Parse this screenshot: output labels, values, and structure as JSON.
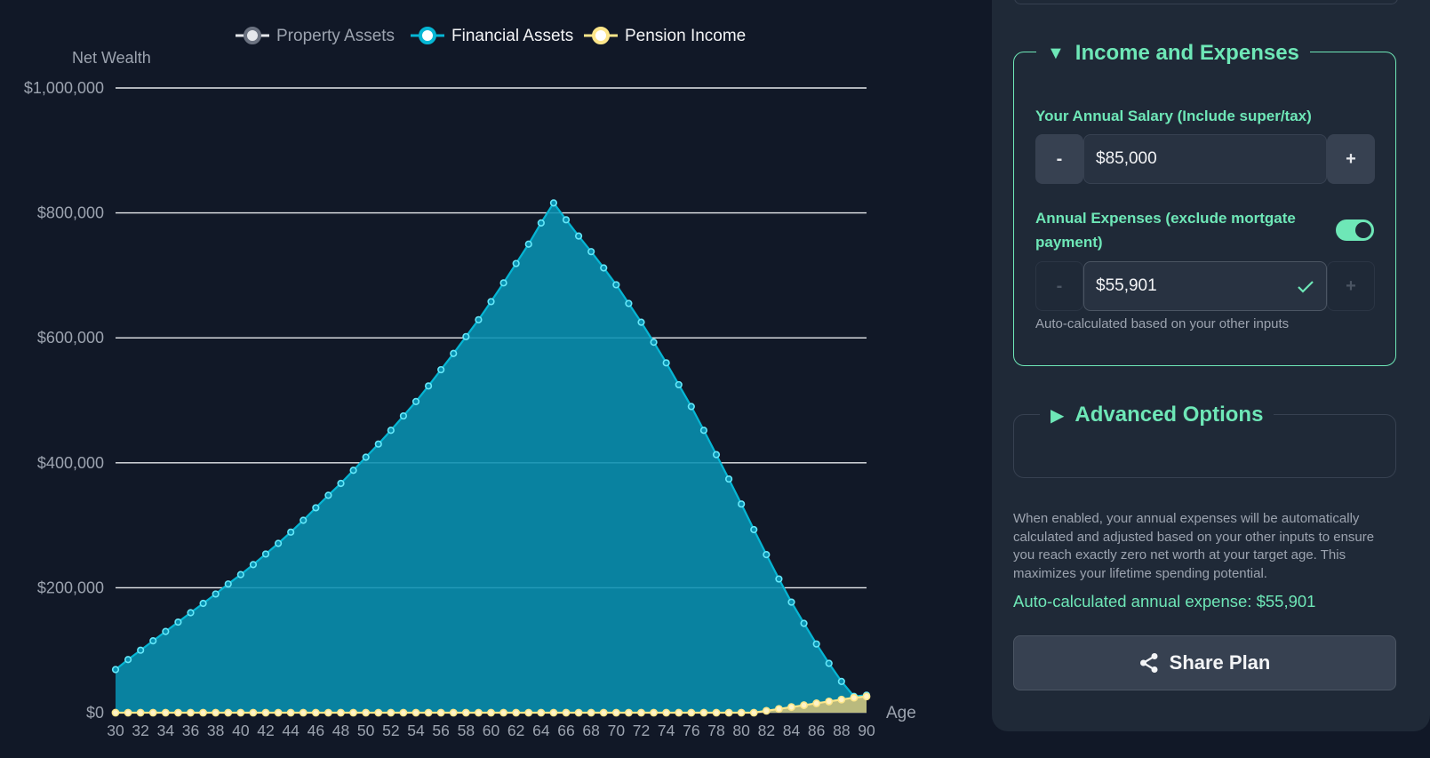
{
  "chart_data": {
    "type": "area",
    "xlabel": "Age",
    "ylabel": "Net Wealth",
    "ylim": [
      0,
      1000000
    ],
    "xlim": [
      30,
      90
    ],
    "yticks": [
      0,
      200000,
      400000,
      600000,
      800000,
      1000000
    ],
    "ytick_labels": [
      "$0",
      "$200,000",
      "$400,000",
      "$600,000",
      "$800,000",
      "$1,000,000"
    ],
    "xticks": [
      30,
      32,
      34,
      36,
      38,
      40,
      42,
      44,
      46,
      48,
      50,
      52,
      54,
      56,
      58,
      60,
      62,
      64,
      66,
      68,
      70,
      72,
      74,
      76,
      78,
      80,
      82,
      84,
      86,
      88,
      90
    ],
    "grid": true,
    "legend_position": "top",
    "legend": [
      {
        "name": "Property Assets",
        "color": "#9ca3af",
        "active": false
      },
      {
        "name": "Financial Assets",
        "color": "#22d3ee",
        "active": true
      },
      {
        "name": "Pension Income",
        "color": "#fde68a",
        "active": true
      }
    ],
    "series": [
      {
        "name": "Financial Assets",
        "color": "#0891b2",
        "x": [
          30,
          31,
          32,
          33,
          34,
          35,
          36,
          37,
          38,
          39,
          40,
          41,
          42,
          43,
          44,
          45,
          46,
          47,
          48,
          49,
          50,
          51,
          52,
          53,
          54,
          55,
          56,
          57,
          58,
          59,
          60,
          61,
          62,
          63,
          64,
          65,
          66,
          67,
          68,
          69,
          70,
          71,
          72,
          73,
          74,
          75,
          76,
          77,
          78,
          79,
          80,
          81,
          82,
          83,
          84,
          85,
          86,
          87,
          88,
          89,
          90
        ],
        "values": [
          69000,
          85000,
          100000,
          115000,
          130000,
          145000,
          160000,
          175000,
          190000,
          206000,
          221000,
          237000,
          254000,
          271000,
          289000,
          308000,
          328000,
          348000,
          367000,
          388000,
          409000,
          430000,
          452000,
          475000,
          498000,
          523000,
          549000,
          575000,
          602000,
          629000,
          658000,
          688000,
          719000,
          750000,
          784000,
          816000,
          789000,
          763000,
          738000,
          712000,
          685000,
          655000,
          625000,
          593000,
          560000,
          525000,
          490000,
          452000,
          413000,
          374000,
          334000,
          293000,
          253000,
          214000,
          177000,
          143000,
          110000,
          79000,
          50000,
          26000,
          28000
        ]
      },
      {
        "name": "Pension Income",
        "color": "#fde68a",
        "x": [
          30,
          31,
          32,
          33,
          34,
          35,
          36,
          37,
          38,
          39,
          40,
          41,
          42,
          43,
          44,
          45,
          46,
          47,
          48,
          49,
          50,
          51,
          52,
          53,
          54,
          55,
          56,
          57,
          58,
          59,
          60,
          61,
          62,
          63,
          64,
          65,
          66,
          67,
          68,
          69,
          70,
          71,
          72,
          73,
          74,
          75,
          76,
          77,
          78,
          79,
          80,
          81,
          82,
          83,
          84,
          85,
          86,
          87,
          88,
          89,
          90
        ],
        "values": [
          0,
          0,
          0,
          0,
          0,
          0,
          0,
          0,
          0,
          0,
          0,
          0,
          0,
          0,
          0,
          0,
          0,
          0,
          0,
          0,
          0,
          0,
          0,
          0,
          0,
          0,
          0,
          0,
          0,
          0,
          0,
          0,
          0,
          0,
          0,
          0,
          0,
          0,
          0,
          0,
          0,
          0,
          0,
          0,
          0,
          0,
          0,
          0,
          0,
          0,
          0,
          0,
          3000,
          6000,
          9000,
          12000,
          15000,
          18000,
          21000,
          24000,
          26000
        ]
      }
    ]
  },
  "panel": {
    "income_section": {
      "toggle_glyph": "▼",
      "title": "Income and Expenses",
      "salary_label": "Your Annual Salary (Include super/tax)",
      "salary_value": "$85,000",
      "minus": "-",
      "plus": "+",
      "expenses_label": "Annual Expenses (exclude mortgate payment)",
      "expenses_value": "$55,901",
      "auto_toggle_on": true,
      "helper": "Auto-calculated based on your other inputs"
    },
    "advanced_section": {
      "toggle_glyph": "▶",
      "title": "Advanced Options"
    },
    "description": "When enabled, your annual expenses will be automatically calculated and adjusted based on your other inputs to ensure you reach exactly zero net worth at your target age. This maximizes your lifetime spending potential.",
    "auto_expense_line": "Auto-calculated annual expense: $55,901",
    "share_button": "Share Plan",
    "icons": {
      "share": "share-icon",
      "check": "check-icon",
      "collapse": "triangle-down-icon",
      "expand": "triangle-right-icon"
    }
  }
}
